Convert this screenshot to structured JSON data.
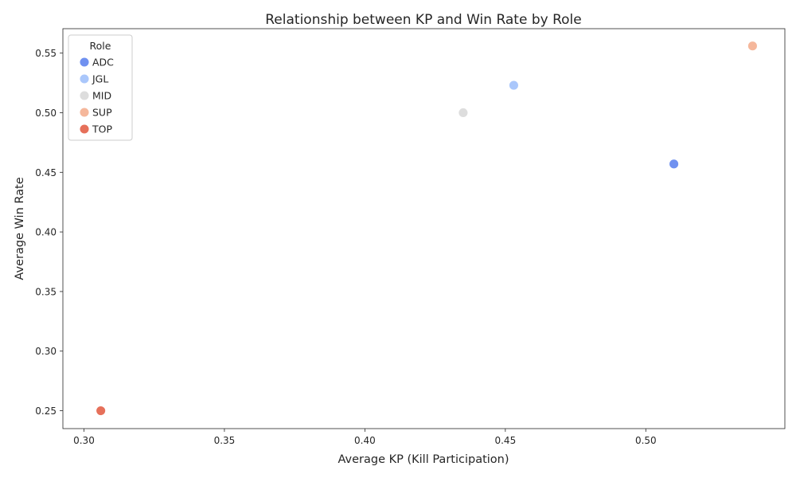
{
  "chart_data": {
    "type": "scatter",
    "title": "Relationship between KP and Win Rate by Role",
    "xlabel": "Average KP (Kill Participation)",
    "ylabel": "Average Win Rate",
    "xlim": [
      0.2925,
      0.5495
    ],
    "ylim": [
      0.235,
      0.5705
    ],
    "xticks": [
      0.3,
      0.35,
      0.4,
      0.45,
      0.5
    ],
    "xtick_labels": [
      "0.30",
      "0.35",
      "0.40",
      "0.45",
      "0.50"
    ],
    "yticks": [
      0.25,
      0.3,
      0.35,
      0.4,
      0.45,
      0.5,
      0.55
    ],
    "ytick_labels": [
      "0.25",
      "0.30",
      "0.35",
      "0.40",
      "0.45",
      "0.50",
      "0.55"
    ],
    "grid": false,
    "legend": {
      "title": "Role",
      "placement": "top-left"
    },
    "series": [
      {
        "name": "ADC",
        "color": "#7091f0",
        "x": 0.51,
        "y": 0.457
      },
      {
        "name": "JGL",
        "color": "#aac7fb",
        "x": 0.453,
        "y": 0.523
      },
      {
        "name": "MID",
        "color": "#dddddd",
        "x": 0.435,
        "y": 0.5
      },
      {
        "name": "SUP",
        "color": "#f5b79b",
        "x": 0.538,
        "y": 0.556
      },
      {
        "name": "TOP",
        "color": "#e6705a",
        "x": 0.306,
        "y": 0.25
      }
    ]
  }
}
